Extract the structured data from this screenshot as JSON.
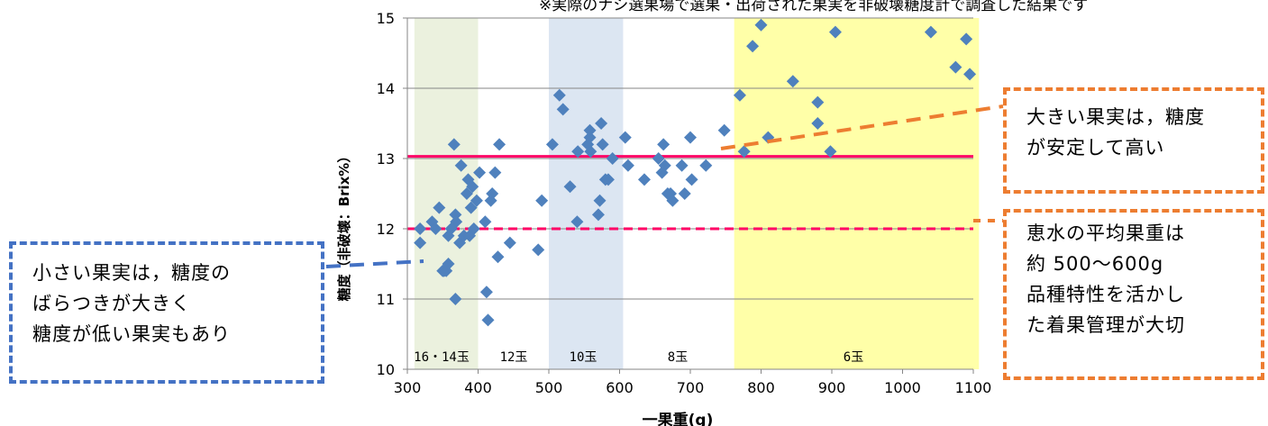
{
  "note": "※実際のナシ選果場で選果・出荷された果実を非破壊糖度計で調査した結果です",
  "callouts": {
    "small": [
      "小さい果実は，糖度の",
      "ばらつきが大きく",
      "糖度が低い果実もあり"
    ],
    "large": [
      "大きい果実は，糖度",
      "が安定して高い"
    ],
    "avg": [
      "恵水の平均果重は",
      "約 500～600g",
      "品種特性を活かし",
      "た着果管理が大切"
    ]
  },
  "colors": {
    "points": "#4F81BD",
    "band_16_14": "#EBF1DE",
    "band_10": "#DCE6F2",
    "band_6": "#FFFFA8",
    "target_line": "#FF0066",
    "callout_blue": "#4472C4",
    "callout_orange": "#ED7D31"
  },
  "chart_data": {
    "type": "scatter",
    "xlabel": "一果重(g)",
    "ylabel": "糖度（非破壊：Brix%）",
    "xlim": [
      300,
      1100
    ],
    "ylim": [
      10,
      15
    ],
    "xticks": [
      300,
      400,
      500,
      600,
      700,
      800,
      900,
      1000,
      1100
    ],
    "yticks": [
      10,
      11,
      12,
      13,
      14,
      15
    ],
    "grid": "horizontal",
    "bands": [
      {
        "label": "16・14玉",
        "from": 310,
        "to": 400
      },
      {
        "label": "12玉",
        "from": null,
        "to": null
      },
      {
        "label": "10玉",
        "from": 500,
        "to": 605
      },
      {
        "label": "8玉",
        "from": null,
        "to": null
      },
      {
        "label": "6玉",
        "from": 762,
        "to": 1108
      }
    ],
    "reference_lines": [
      {
        "y": 13.03,
        "style": "solid"
      },
      {
        "y": 12.0,
        "style": "dashed"
      }
    ],
    "points": [
      [
        318,
        12.0
      ],
      [
        318,
        11.8
      ],
      [
        335,
        12.1
      ],
      [
        340,
        12.0
      ],
      [
        345,
        12.3
      ],
      [
        350,
        11.4
      ],
      [
        352,
        11.4
      ],
      [
        355,
        11.4
      ],
      [
        358,
        11.5
      ],
      [
        358,
        11.9
      ],
      [
        362,
        12.0
      ],
      [
        366,
        13.2
      ],
      [
        368,
        11.0
      ],
      [
        368,
        12.2
      ],
      [
        369,
        12.1
      ],
      [
        374,
        11.8
      ],
      [
        376,
        12.9
      ],
      [
        380,
        11.9
      ],
      [
        384,
        12.5
      ],
      [
        386,
        12.7
      ],
      [
        388,
        11.9
      ],
      [
        390,
        12.3
      ],
      [
        392,
        12.6
      ],
      [
        394,
        12.0
      ],
      [
        398,
        12.4
      ],
      [
        402,
        12.8
      ],
      [
        410,
        12.1
      ],
      [
        412,
        11.1
      ],
      [
        414,
        10.7
      ],
      [
        418,
        12.4
      ],
      [
        420,
        12.5
      ],
      [
        424,
        12.8
      ],
      [
        428,
        11.6
      ],
      [
        430,
        13.2
      ],
      [
        445,
        11.8
      ],
      [
        485,
        11.7
      ],
      [
        490,
        12.4
      ],
      [
        505,
        13.2
      ],
      [
        515,
        13.9
      ],
      [
        520,
        13.7
      ],
      [
        530,
        12.6
      ],
      [
        540,
        12.1
      ],
      [
        541,
        13.1
      ],
      [
        555,
        13.2
      ],
      [
        558,
        13.3
      ],
      [
        558,
        13.4
      ],
      [
        559,
        13.1
      ],
      [
        570,
        12.2
      ],
      [
        572,
        12.4
      ],
      [
        574,
        13.5
      ],
      [
        576,
        13.2
      ],
      [
        580,
        12.7
      ],
      [
        584,
        12.7
      ],
      [
        590,
        13.0
      ],
      [
        608,
        13.3
      ],
      [
        612,
        12.9
      ],
      [
        635,
        12.7
      ],
      [
        655,
        13.0
      ],
      [
        660,
        12.8
      ],
      [
        662,
        13.2
      ],
      [
        664,
        12.9
      ],
      [
        668,
        12.5
      ],
      [
        672,
        12.5
      ],
      [
        675,
        12.4
      ],
      [
        688,
        12.9
      ],
      [
        692,
        12.5
      ],
      [
        700,
        13.3
      ],
      [
        702,
        12.7
      ],
      [
        722,
        12.9
      ],
      [
        748,
        13.4
      ],
      [
        770,
        13.9
      ],
      [
        776,
        13.1
      ],
      [
        788,
        14.6
      ],
      [
        800,
        14.9
      ],
      [
        810,
        13.3
      ],
      [
        845,
        14.1
      ],
      [
        880,
        13.8
      ],
      [
        880,
        13.5
      ],
      [
        898,
        13.1
      ],
      [
        905,
        14.8
      ],
      [
        1040,
        14.8
      ],
      [
        1075,
        14.3
      ],
      [
        1090,
        14.7
      ],
      [
        1095,
        14.2
      ]
    ]
  }
}
